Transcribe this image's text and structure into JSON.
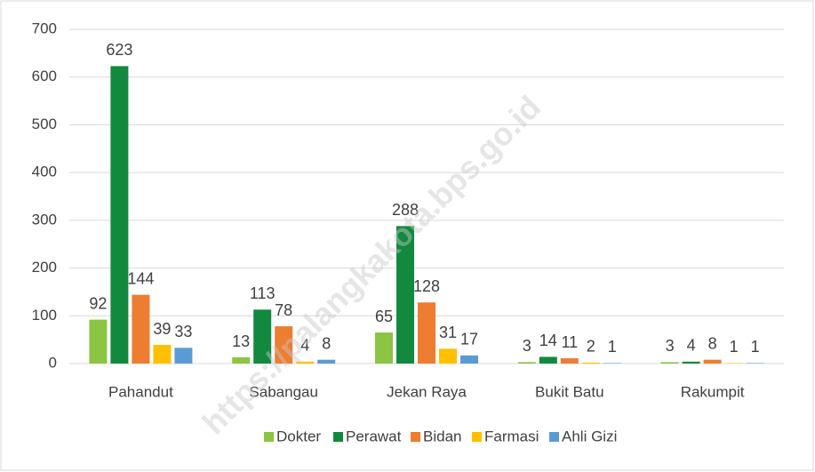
{
  "chart_data": {
    "type": "bar",
    "categories": [
      "Pahandut",
      "Sabangau",
      "Jekan Raya",
      "Bukit Batu",
      "Rakumpit"
    ],
    "series": [
      {
        "name": "Dokter",
        "color": "#8cc443",
        "values": [
          92,
          13,
          65,
          3,
          3
        ]
      },
      {
        "name": "Perawat",
        "color": "#12893f",
        "values": [
          623,
          113,
          288,
          14,
          4
        ]
      },
      {
        "name": "Bidan",
        "color": "#ed7d31",
        "values": [
          144,
          78,
          128,
          11,
          8
        ]
      },
      {
        "name": "Farmasi",
        "color": "#ffc000",
        "values": [
          39,
          4,
          31,
          2,
          1
        ]
      },
      {
        "name": "Ahli Gizi",
        "color": "#5b9bd5",
        "values": [
          33,
          8,
          17,
          1,
          1
        ]
      }
    ],
    "ylim": [
      0,
      700
    ],
    "yticks": [
      0,
      100,
      200,
      300,
      400,
      500,
      600,
      700
    ],
    "grid": true,
    "legend": "bottom",
    "watermark": "https://palangkakota.bps.go.id"
  }
}
